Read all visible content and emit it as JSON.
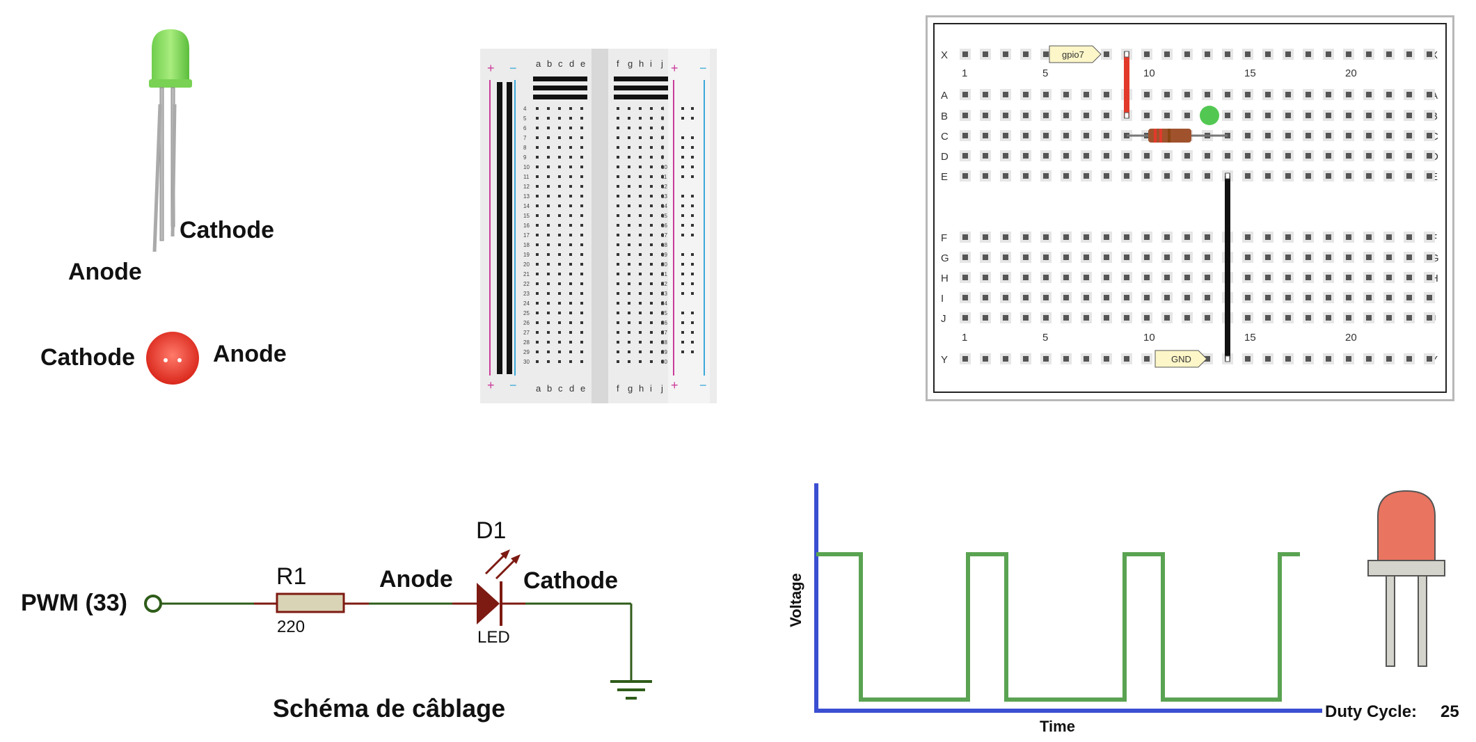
{
  "led_components": {
    "green_led": {
      "cathode_label": "Cathode",
      "anode_label": "Anode"
    },
    "red_led_top": {
      "cathode_label": "Cathode",
      "anode_label": "Anode"
    }
  },
  "breadboard_blank": {
    "column_letters_left": [
      "a",
      "b",
      "c",
      "d",
      "e"
    ],
    "column_letters_right": [
      "f",
      "g",
      "h",
      "i",
      "j"
    ],
    "rows": 30,
    "plus": "+",
    "minus": "−"
  },
  "breadboard_wiring": {
    "top_rail_label": "X",
    "bottom_rail_label": "Y",
    "rows_top": [
      "A",
      "B",
      "C",
      "D",
      "E"
    ],
    "rows_bottom": [
      "F",
      "G",
      "H",
      "I",
      "J"
    ],
    "column_numbers": [
      "1",
      "5",
      "10",
      "15",
      "20"
    ],
    "gpio_tag": "gpio7",
    "gnd_tag": "GND"
  },
  "schematic": {
    "input_label": "PWM (33)",
    "resistor_name": "R1",
    "resistor_value": "220",
    "diode_name": "D1",
    "diode_type": "LED",
    "anode_label": "Anode",
    "cathode_label": "Cathode",
    "caption": "Schéma de câblage"
  },
  "pwm_plot": {
    "y_label": "Voltage",
    "x_label": "Time",
    "duty_label": "Duty Cycle:",
    "duty_value": "25",
    "colors": {
      "axis": "#3b4fd1",
      "signal": "#5aa352",
      "led": "#e97460"
    }
  }
}
